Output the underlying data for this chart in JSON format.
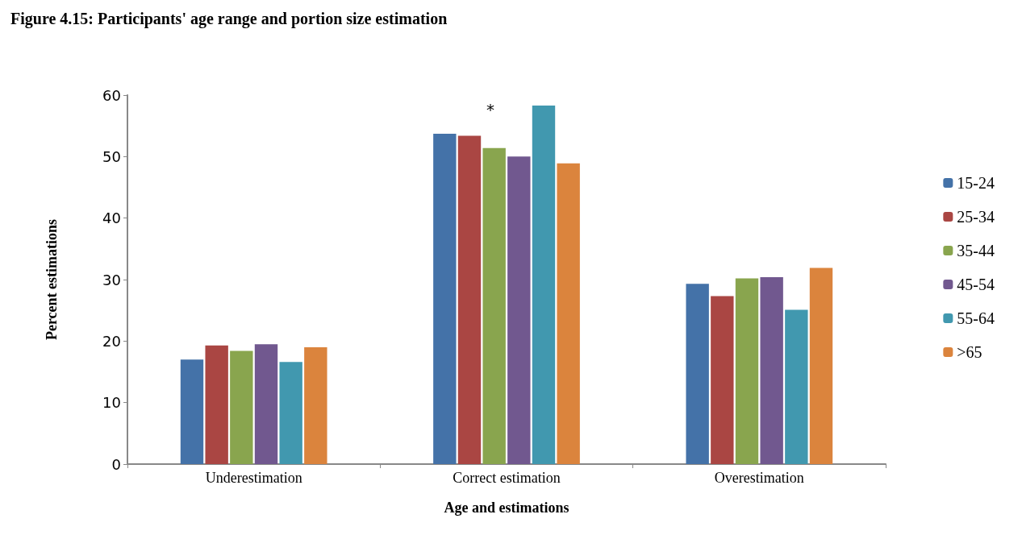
{
  "chart_data": {
    "type": "bar",
    "title": "Figure 4.15: Participants' age range and portion size estimation",
    "xlabel": "Age and estimations",
    "ylabel": "Percent estimations",
    "categories": [
      "Underestimation",
      "Correct estimation",
      "Overestimation"
    ],
    "series": [
      {
        "name": "15-24",
        "color": "#4472a8",
        "values": [
          17.0,
          53.7,
          29.3
        ]
      },
      {
        "name": "25-34",
        "color": "#aa4643",
        "values": [
          19.3,
          53.4,
          27.3
        ]
      },
      {
        "name": "35-44",
        "color": "#89a54e",
        "values": [
          18.4,
          51.4,
          30.2
        ]
      },
      {
        "name": "45-54",
        "color": "#71588f",
        "values": [
          19.5,
          50.0,
          30.4
        ]
      },
      {
        "name": "55-64",
        "color": "#4198af",
        "values": [
          16.6,
          58.3,
          25.1
        ]
      },
      {
        "name": ">65",
        "color": "#db843d",
        "values": [
          19.0,
          48.9,
          31.9
        ]
      }
    ],
    "ylim": [
      0,
      60
    ],
    "yticks": [
      0,
      10,
      20,
      30,
      40,
      50,
      60
    ],
    "grid": false,
    "legend": "right",
    "annotations": [
      "*"
    ]
  }
}
